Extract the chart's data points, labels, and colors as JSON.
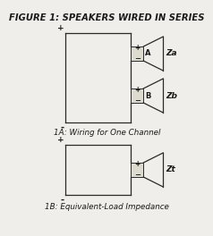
{
  "title": "FIGURE 1: SPEAKERS WIRED IN SERIES",
  "title_fontsize": 7.2,
  "bg_color": "#f0eeea",
  "line_color": "#2a2a2a",
  "text_color": "#1a1a1a",
  "label_1A": "1A: Wiring for One Channel",
  "label_1B": "1B: Equivalent-Load Impedance",
  "label_A": "A",
  "label_B": "B",
  "label_Za": "Za",
  "label_Zb": "Zb",
  "label_Zt": "Zt",
  "plus_sym": "+",
  "minus_sym": "-",
  "plus_minus_top": "+",
  "plus_minus_bot": "−"
}
